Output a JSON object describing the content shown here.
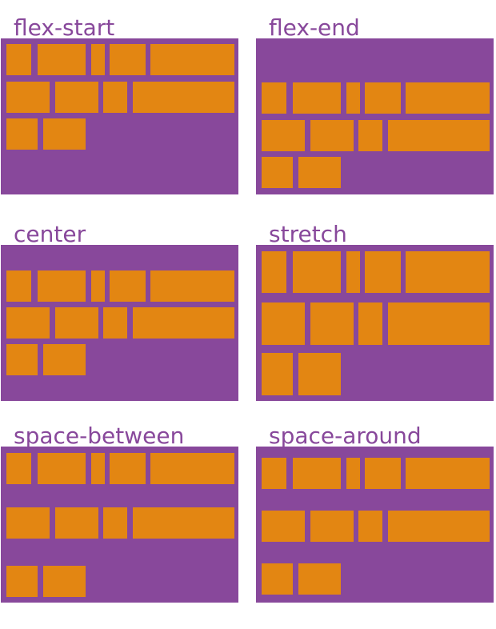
{
  "colors": {
    "container": "#88489b",
    "item": "#e38612",
    "label": "#88489b"
  },
  "panels": [
    {
      "label": "flex-start"
    },
    {
      "label": "flex-end"
    },
    {
      "label": "center"
    },
    {
      "label": "stretch"
    },
    {
      "label": "space-between"
    },
    {
      "label": "space-around"
    }
  ]
}
